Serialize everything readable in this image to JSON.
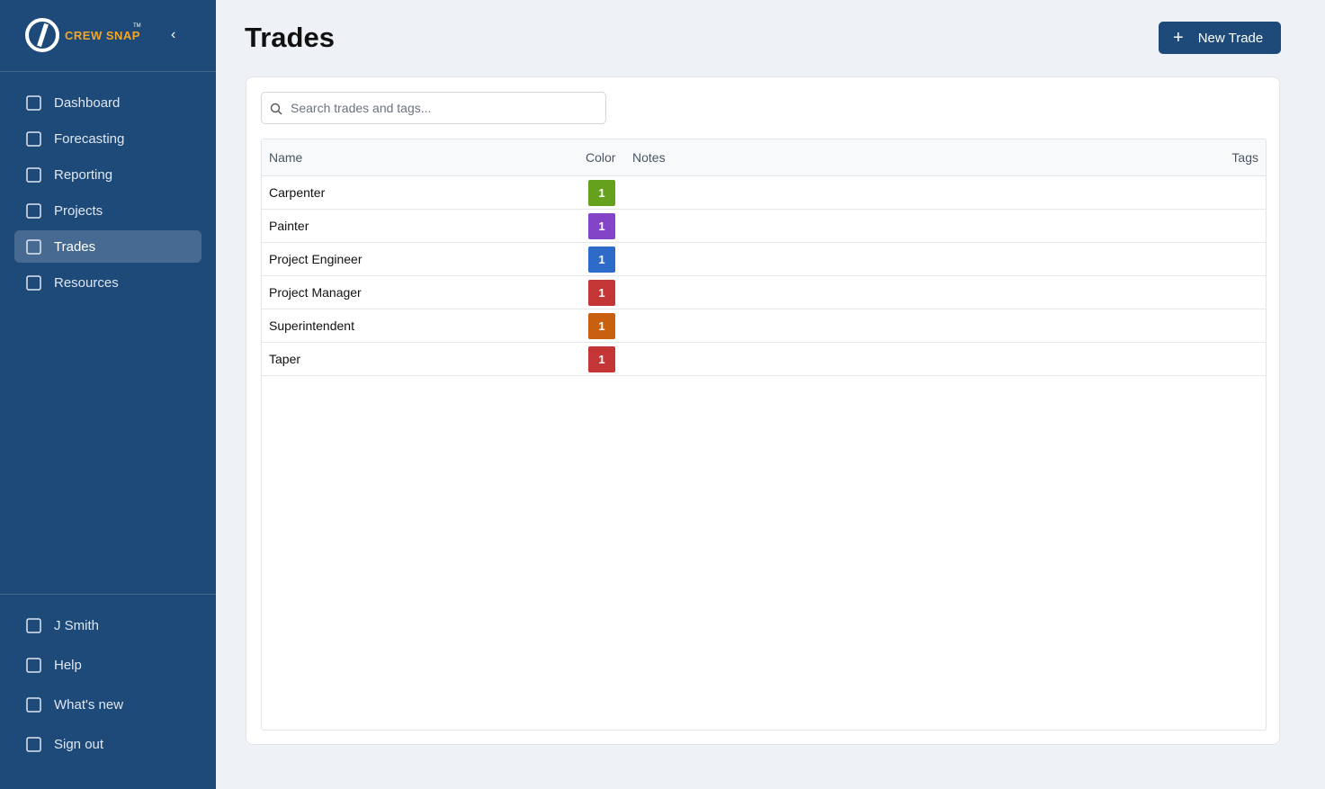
{
  "sidebar": {
    "logo": {
      "text": "CREW SNAP",
      "mark": "TM"
    },
    "nav": [
      "Dashboard",
      "Forecasting",
      "Reporting",
      "Projects",
      "Trades",
      "Resources"
    ],
    "active": "Trades",
    "footer": [
      "J Smith",
      "Help",
      "What's new",
      "Sign out"
    ]
  },
  "header": {
    "title": "Trades",
    "button": "New Trade"
  },
  "search": {
    "placeholder": "Search trades and tags..."
  },
  "table": {
    "columns": [
      "Name",
      "Color",
      "Notes",
      "Tags"
    ],
    "rows": [
      {
        "name": "Carpenter",
        "badge": "1",
        "color": "#66a11d"
      },
      {
        "name": "Painter",
        "badge": "1",
        "color": "#8444c8"
      },
      {
        "name": "Project Engineer",
        "badge": "1",
        "color": "#2e6bc8"
      },
      {
        "name": "Project Manager",
        "badge": "1",
        "color": "#c43535"
      },
      {
        "name": "Superintendent",
        "badge": "1",
        "color": "#c9600f"
      },
      {
        "name": "Taper",
        "badge": "1",
        "color": "#c43535"
      }
    ]
  }
}
